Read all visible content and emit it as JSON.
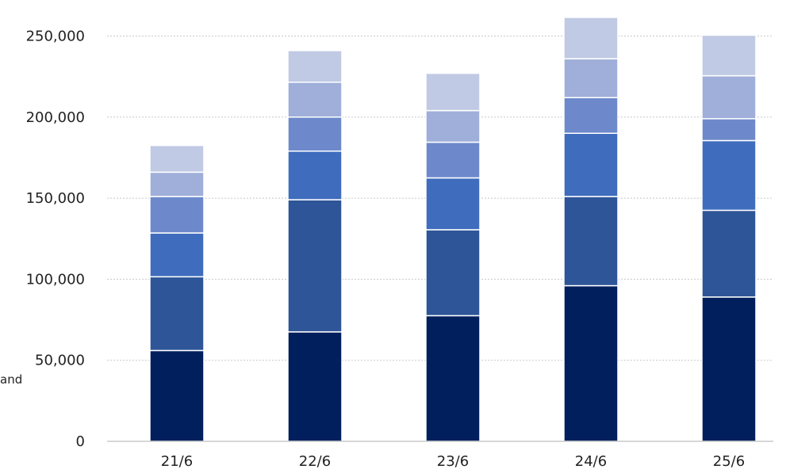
{
  "chart_data": {
    "type": "bar",
    "stacked": true,
    "title": "",
    "xlabel": "",
    "ylabel": "",
    "categories": [
      "21/6",
      "22/6",
      "23/6",
      "24/6",
      "25/6"
    ],
    "ylim": [
      0,
      260000
    ],
    "y_ticks": [
      0,
      50000,
      100000,
      150000,
      200000,
      250000
    ],
    "y_tick_labels": [
      "0",
      "50,000",
      "100,000",
      "150,000",
      "200,000",
      "250,000"
    ],
    "grid": "horizontal-dotted",
    "series": [
      {
        "color": "#001f5c",
        "values": [
          56000,
          67500,
          77500,
          96000,
          89000
        ]
      },
      {
        "color": "#2e5597",
        "values": [
          45500,
          81500,
          53000,
          55000,
          53500
        ]
      },
      {
        "color": "#3f6cbd",
        "values": [
          27000,
          30000,
          32000,
          39000,
          43000
        ]
      },
      {
        "color": "#6d89cb",
        "values": [
          22500,
          21000,
          22000,
          22000,
          13500
        ]
      },
      {
        "color": "#9fafd9",
        "values": [
          15000,
          21500,
          19500,
          24000,
          26500
        ]
      },
      {
        "color": "#c0cae4",
        "values": [
          16500,
          19500,
          23000,
          25500,
          25000
        ]
      }
    ],
    "fragment_label": "and"
  }
}
